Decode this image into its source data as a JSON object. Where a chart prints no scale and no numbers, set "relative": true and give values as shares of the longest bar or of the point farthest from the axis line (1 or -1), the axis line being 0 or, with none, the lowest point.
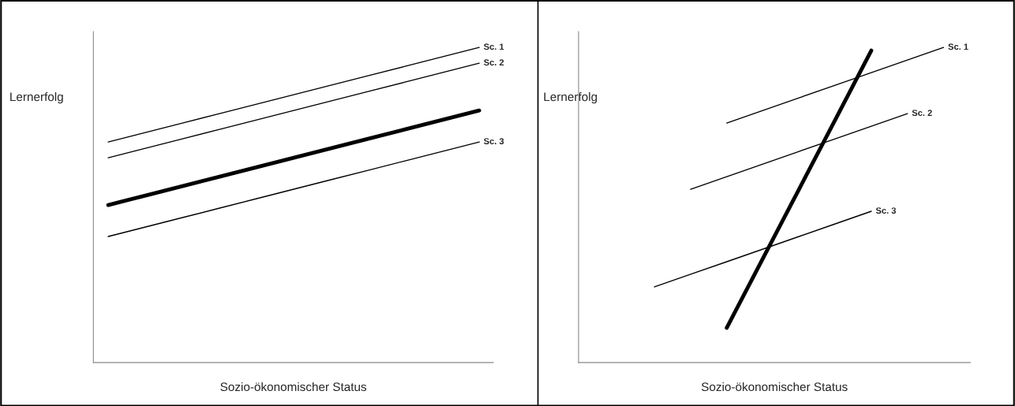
{
  "chart_data": [
    {
      "type": "line",
      "relative": true,
      "xlabel": "Sozio-ökonomischer Status",
      "ylabel": "Lernerfolg",
      "categories": [
        null,
        null,
        null,
        null,
        null,
        null,
        null,
        null,
        null,
        null,
        null
      ],
      "grid": false,
      "legend": false,
      "tick_labels": false,
      "series": [
        {
          "name": "Sc. 1",
          "color": "#000000",
          "values": [
            0.7,
            0.73,
            0.76,
            0.79,
            0.82,
            0.85,
            0.88,
            0.91,
            0.94,
            0.97,
            1.0
          ]
        },
        {
          "name": "Sc. 2",
          "color": "#000000",
          "values": [
            0.65,
            0.68,
            0.71,
            0.74,
            0.77,
            0.8,
            0.83,
            0.86,
            0.89,
            0.92,
            0.95
          ]
        },
        {
          "color": "#000000",
          "values": [
            0.5,
            0.53,
            0.56,
            0.59,
            0.62,
            0.65,
            0.68,
            0.71,
            0.74,
            0.77,
            0.8
          ]
        },
        {
          "name": "Sc. 3",
          "color": "#000000",
          "values": [
            0.4,
            0.43,
            0.46,
            0.49,
            0.52,
            0.55,
            0.58,
            0.61,
            0.64,
            0.67,
            0.7
          ]
        }
      ]
    },
    {
      "type": "line",
      "relative": true,
      "xlabel": "Sozio-ökonomischer Status",
      "ylabel": "Lernerfolg",
      "categories": [
        null,
        null,
        null,
        null,
        null,
        null,
        null,
        null,
        null
      ],
      "grid": false,
      "legend": false,
      "tick_labels": false,
      "series": [
        {
          "name": "Sc. 1",
          "color": "#000000",
          "values": [
            null,
            null,
            0.76,
            0.8,
            0.84,
            0.88,
            0.92,
            0.96,
            1.0
          ]
        },
        {
          "name": "Sc. 2",
          "color": "#000000",
          "values": [
            null,
            0.55,
            0.59,
            0.63,
            0.67,
            0.71,
            0.75,
            0.79,
            null
          ]
        },
        {
          "color": "#000000",
          "values": [
            null,
            null,
            0.11,
            0.33,
            0.55,
            0.77,
            0.99,
            null,
            null
          ]
        },
        {
          "name": "Sc. 3",
          "color": "#000000",
          "values": [
            0.24,
            0.28,
            0.32,
            0.36,
            0.4,
            0.44,
            0.48,
            null,
            null
          ]
        }
      ]
    }
  ]
}
